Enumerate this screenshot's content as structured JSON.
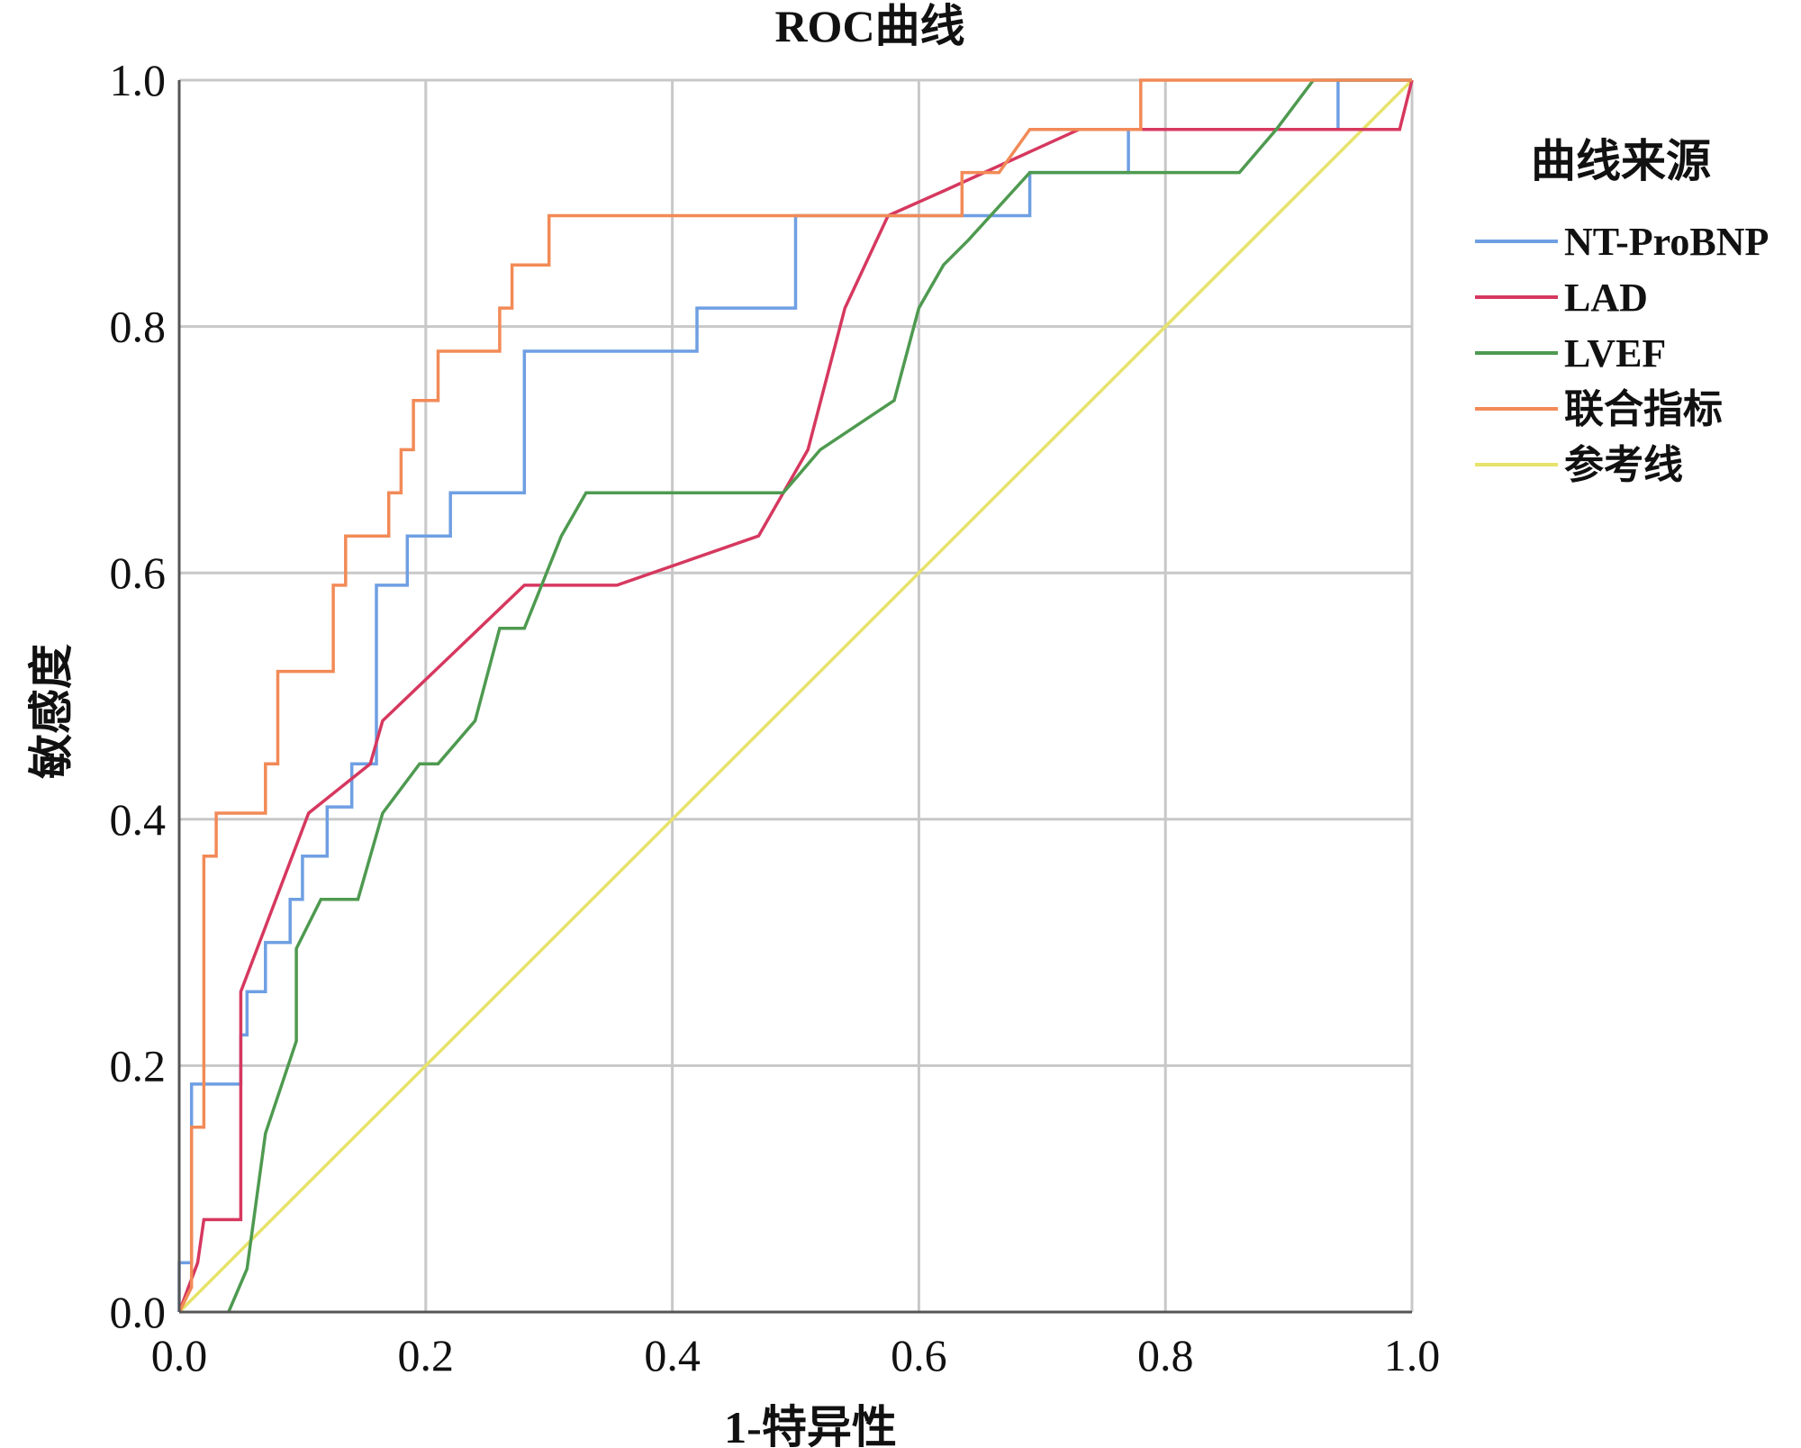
{
  "chart_data": {
    "type": "line",
    "title": "ROC曲线",
    "xlabel": "1-特异性",
    "ylabel": "敏感度",
    "xlim": [
      0,
      1
    ],
    "ylim": [
      0,
      1
    ],
    "x_ticks": [
      "0.0",
      "0.2",
      "0.4",
      "0.6",
      "0.8",
      "1.0"
    ],
    "y_ticks": [
      "0.0",
      "0.2",
      "0.4",
      "0.6",
      "0.8",
      "1.0"
    ],
    "grid": true,
    "legend": {
      "title": "曲线来源",
      "placement": "right"
    },
    "series": [
      {
        "name": "NT-ProBNP",
        "color": "#6f9fe3",
        "step": true,
        "points": [
          [
            0,
            0
          ],
          [
            0,
            0.04
          ],
          [
            0.01,
            0.04
          ],
          [
            0.01,
            0.185
          ],
          [
            0.05,
            0.185
          ],
          [
            0.05,
            0.225
          ],
          [
            0.055,
            0.225
          ],
          [
            0.055,
            0.26
          ],
          [
            0.07,
            0.26
          ],
          [
            0.07,
            0.3
          ],
          [
            0.09,
            0.3
          ],
          [
            0.09,
            0.335
          ],
          [
            0.1,
            0.335
          ],
          [
            0.1,
            0.37
          ],
          [
            0.12,
            0.37
          ],
          [
            0.12,
            0.41
          ],
          [
            0.14,
            0.41
          ],
          [
            0.14,
            0.445
          ],
          [
            0.16,
            0.445
          ],
          [
            0.16,
            0.59
          ],
          [
            0.185,
            0.59
          ],
          [
            0.185,
            0.63
          ],
          [
            0.22,
            0.63
          ],
          [
            0.22,
            0.665
          ],
          [
            0.28,
            0.665
          ],
          [
            0.28,
            0.78
          ],
          [
            0.42,
            0.78
          ],
          [
            0.42,
            0.815
          ],
          [
            0.5,
            0.815
          ],
          [
            0.5,
            0.89
          ],
          [
            0.69,
            0.89
          ],
          [
            0.69,
            0.925
          ],
          [
            0.77,
            0.925
          ],
          [
            0.77,
            0.96
          ],
          [
            0.94,
            0.96
          ],
          [
            0.94,
            1.0
          ],
          [
            1.0,
            1.0
          ]
        ]
      },
      {
        "name": "LAD",
        "color": "#d6385f",
        "step": false,
        "points": [
          [
            0,
            0
          ],
          [
            0.015,
            0.04
          ],
          [
            0.02,
            0.075
          ],
          [
            0.05,
            0.075
          ],
          [
            0.05,
            0.26
          ],
          [
            0.105,
            0.405
          ],
          [
            0.155,
            0.445
          ],
          [
            0.165,
            0.48
          ],
          [
            0.28,
            0.59
          ],
          [
            0.355,
            0.59
          ],
          [
            0.47,
            0.63
          ],
          [
            0.51,
            0.7
          ],
          [
            0.54,
            0.815
          ],
          [
            0.575,
            0.89
          ],
          [
            0.62,
            0.91
          ],
          [
            0.73,
            0.96
          ],
          [
            0.99,
            0.96
          ],
          [
            1.0,
            1.0
          ]
        ]
      },
      {
        "name": "LVEF",
        "color": "#4e9a50",
        "step": false,
        "points": [
          [
            0.04,
            0
          ],
          [
            0.055,
            0.035
          ],
          [
            0.07,
            0.145
          ],
          [
            0.095,
            0.22
          ],
          [
            0.095,
            0.295
          ],
          [
            0.115,
            0.335
          ],
          [
            0.145,
            0.335
          ],
          [
            0.165,
            0.405
          ],
          [
            0.195,
            0.445
          ],
          [
            0.21,
            0.445
          ],
          [
            0.24,
            0.48
          ],
          [
            0.26,
            0.555
          ],
          [
            0.28,
            0.555
          ],
          [
            0.31,
            0.63
          ],
          [
            0.33,
            0.665
          ],
          [
            0.49,
            0.665
          ],
          [
            0.52,
            0.7
          ],
          [
            0.58,
            0.74
          ],
          [
            0.6,
            0.815
          ],
          [
            0.62,
            0.85
          ],
          [
            0.64,
            0.87
          ],
          [
            0.69,
            0.925
          ],
          [
            0.86,
            0.925
          ],
          [
            0.89,
            0.96
          ],
          [
            0.92,
            1.0
          ],
          [
            1.0,
            1.0
          ]
        ]
      },
      {
        "name": "联合指标",
        "color": "#f28a57",
        "step": true,
        "points": [
          [
            0,
            0
          ],
          [
            0.01,
            0.02
          ],
          [
            0.01,
            0.15
          ],
          [
            0.02,
            0.15
          ],
          [
            0.02,
            0.37
          ],
          [
            0.03,
            0.37
          ],
          [
            0.03,
            0.405
          ],
          [
            0.07,
            0.405
          ],
          [
            0.07,
            0.445
          ],
          [
            0.08,
            0.445
          ],
          [
            0.08,
            0.52
          ],
          [
            0.125,
            0.52
          ],
          [
            0.125,
            0.59
          ],
          [
            0.135,
            0.59
          ],
          [
            0.135,
            0.63
          ],
          [
            0.17,
            0.63
          ],
          [
            0.17,
            0.665
          ],
          [
            0.18,
            0.665
          ],
          [
            0.18,
            0.7
          ],
          [
            0.19,
            0.7
          ],
          [
            0.19,
            0.74
          ],
          [
            0.21,
            0.74
          ],
          [
            0.21,
            0.78
          ],
          [
            0.26,
            0.78
          ],
          [
            0.26,
            0.815
          ],
          [
            0.27,
            0.815
          ],
          [
            0.27,
            0.85
          ],
          [
            0.3,
            0.85
          ],
          [
            0.3,
            0.89
          ],
          [
            0.635,
            0.89
          ],
          [
            0.635,
            0.925
          ],
          [
            0.665,
            0.925
          ],
          [
            0.69,
            0.96
          ],
          [
            0.78,
            0.96
          ],
          [
            0.78,
            1.0
          ],
          [
            1.0,
            1.0
          ]
        ]
      },
      {
        "name": "参考线",
        "color": "#e6e36a",
        "step": false,
        "points": [
          [
            0,
            0
          ],
          [
            1,
            1
          ]
        ]
      }
    ]
  }
}
